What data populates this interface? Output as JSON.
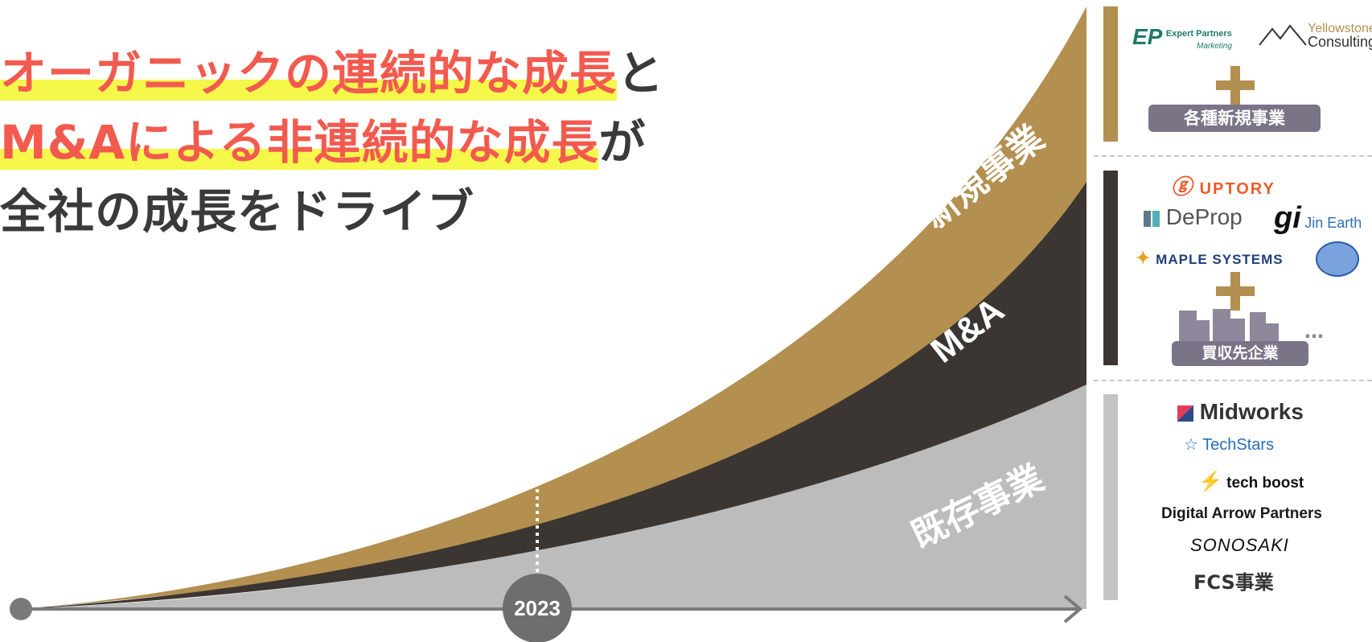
{
  "headline": {
    "line1_highlight": "オーガニックの連続的な成長",
    "line1_rest": "と",
    "line2_highlight": "M&Aによる非連続的な成長",
    "line2_rest": "が",
    "line3": "全社の成長をドライブ"
  },
  "chart": {
    "marker_year": "2023",
    "layers": [
      {
        "key": "new",
        "label": "新規事業",
        "color": "#b38f50"
      },
      {
        "key": "ma",
        "label": "M&A",
        "color": "#3b3632"
      },
      {
        "key": "existing",
        "label": "既存事業",
        "color": "#bcbcbc"
      }
    ],
    "axis_color": "#7a7a7a"
  },
  "groups": {
    "new": {
      "logos": [
        "Expert Partners",
        "Marketing",
        "Yellowstone",
        "Consulting"
      ],
      "tag": "各種新規事業"
    },
    "ma": {
      "logos": [
        "UPTORY",
        "DeProp",
        "Jin Earth",
        "MAPLE SYSTEMS"
      ],
      "tag": "買収先企業",
      "ellipsis": "…"
    },
    "existing": {
      "logos": [
        "Midworks",
        "TechStars",
        "tech boost",
        "Digital Arrow Partners",
        "SONOSAKI",
        "FCS事業"
      ]
    }
  }
}
